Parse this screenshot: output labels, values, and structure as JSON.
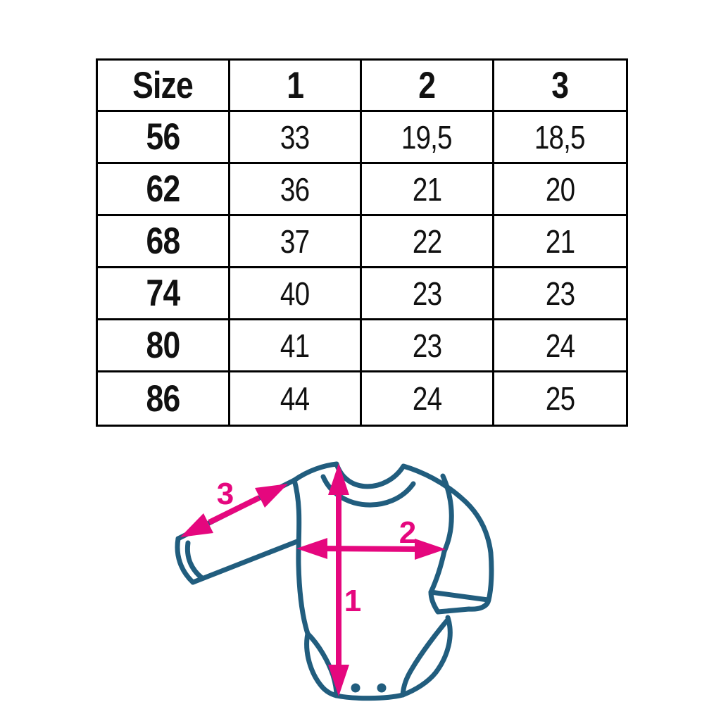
{
  "table": {
    "columns": [
      "Size",
      "1",
      "2",
      "3"
    ],
    "rows": [
      [
        "56",
        "33",
        "19,5",
        "18,5"
      ],
      [
        "62",
        "36",
        "21",
        "20"
      ],
      [
        "68",
        "37",
        "22",
        "21"
      ],
      [
        "74",
        "40",
        "23",
        "23"
      ],
      [
        "80",
        "41",
        "23",
        "24"
      ],
      [
        "86",
        "44",
        "24",
        "25"
      ]
    ]
  },
  "diagram": {
    "type": "baby-bodysuit-measurement-guide",
    "labels": {
      "body_length": "1",
      "chest_width": "2",
      "sleeve_length": "3"
    },
    "colors": {
      "outline": "#215d7e",
      "arrow": "#e5077e",
      "table_border": "#000000",
      "table_text": "#111111",
      "background": "#ffffff"
    }
  }
}
